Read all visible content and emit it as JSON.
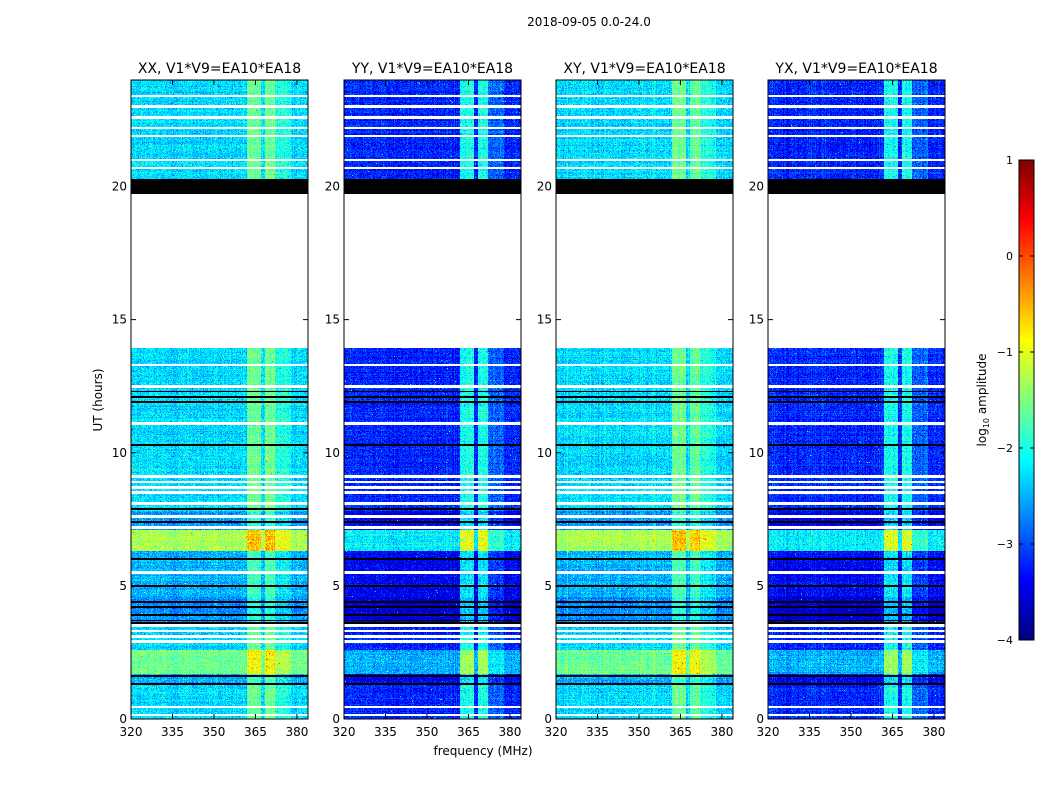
{
  "chart_data": {
    "type": "heatmap",
    "suptitle": "2018-09-05 0.0-24.0",
    "xlabel": "frequency (MHz)",
    "ylabel": "UT (hours)",
    "xlim": [
      320,
      384
    ],
    "ylim": [
      0,
      24
    ],
    "xticks": [
      320,
      335,
      350,
      365,
      380
    ],
    "yticks": [
      0,
      5,
      10,
      15,
      20
    ],
    "colorbar": {
      "label": "log",
      "label_sub": "10",
      "label_rest": " amplitude",
      "colormap": "jet",
      "range": [
        -4,
        1
      ],
      "ticks": [
        1,
        0,
        -1,
        -2,
        -3,
        -4
      ],
      "tick_labels": [
        "1",
        "0",
        "−1",
        "−2",
        "−3",
        "−4"
      ]
    },
    "bright_band_mhz": [
      [
        362,
        367
      ],
      [
        368.5,
        372
      ]
    ],
    "no_data_hours": [
      [
        14.05,
        19.7
      ]
    ],
    "flagged_hours": [
      [
        19.7,
        20.3
      ]
    ],
    "segments": [
      {
        "from": 0,
        "to": 1.3,
        "level": -2.3
      },
      {
        "from": 1.3,
        "to": 1.7,
        "level": -2.5
      },
      {
        "from": 1.7,
        "to": 2.6,
        "level": -1.6
      },
      {
        "from": 2.6,
        "to": 3.6,
        "level": -2.3
      },
      {
        "from": 3.6,
        "to": 4.6,
        "level": -2.7
      },
      {
        "from": 4.6,
        "to": 6.3,
        "level": -2.5
      },
      {
        "from": 6.3,
        "to": 7.1,
        "level": -1.3
      },
      {
        "from": 7.1,
        "to": 7.8,
        "level": -2.6
      },
      {
        "from": 7.8,
        "to": 14.05,
        "level": -2.3
      },
      {
        "from": 20.3,
        "to": 24,
        "level": -2.3
      }
    ],
    "white_lines_hours": [
      0.15,
      0.45,
      2.9,
      3.1,
      3.3,
      3.5,
      5.5,
      7.2,
      7.6,
      8.1,
      8.5,
      8.7,
      8.9,
      9.1,
      11.1,
      12.5,
      13.3,
      14.0,
      20.7,
      21.0,
      21.9,
      22.2,
      22.6,
      23.0,
      23.4
    ],
    "black_lines_hours": [
      1.3,
      1.6,
      3.6,
      3.7,
      3.9,
      4.2,
      4.4,
      5.0,
      6.0,
      7.4,
      7.9,
      10.3,
      11.9,
      12.1,
      12.3
    ],
    "panels": [
      {
        "title": "XX, V1*V9=EA10*EA18",
        "offset": 0.0
      },
      {
        "title": "YY, V1*V9=EA10*EA18",
        "offset": -0.9
      },
      {
        "title": "XY, V1*V9=EA10*EA18",
        "offset": 0.0
      },
      {
        "title": "YX, V1*V9=EA10*EA18",
        "offset": -0.9
      }
    ]
  }
}
